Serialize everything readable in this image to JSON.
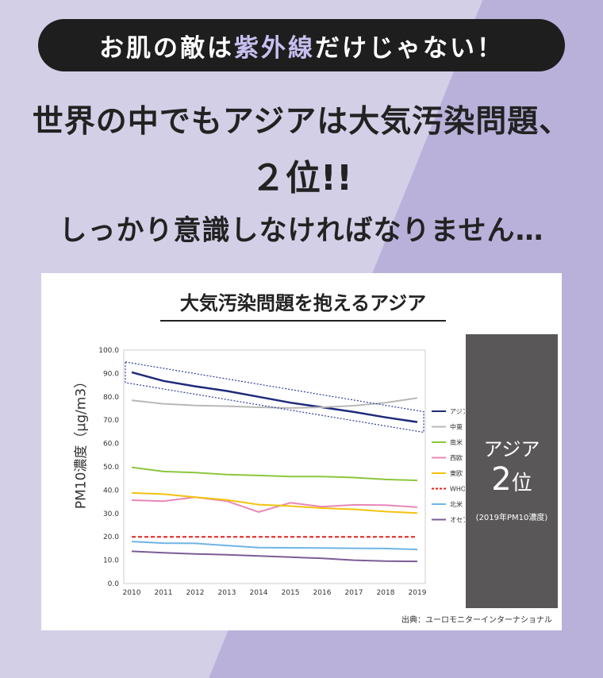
{
  "header": {
    "pill_prefix": "お肌の敵は",
    "pill_highlight": "紫外線",
    "pill_suffix": "だけじゃない！",
    "line1": "世界の中でもアジアは大気汚染問題、",
    "line2": "２位!!",
    "line3": "しっかり意識しなければなりません…"
  },
  "card": {
    "title": "大気汚染問題を抱えるアジア",
    "source": "出典：ユーロモニターインターナショナル"
  },
  "rank": {
    "name": "アジア",
    "num": "2",
    "unit": "位",
    "note": "(2019年PM10濃度)"
  },
  "chart_data": {
    "type": "line",
    "ylabel": "PM10濃度（μg/m3）",
    "ylim": [
      0,
      100
    ],
    "yticks": [
      "0.0",
      "10.0",
      "20.0",
      "30.0",
      "40.0",
      "50.0",
      "60.0",
      "70.0",
      "80.0",
      "90.0",
      "100.0"
    ],
    "x": [
      "2010",
      "2011",
      "2012",
      "2013",
      "2014",
      "2015",
      "2016",
      "2017",
      "2018",
      "2019"
    ],
    "series": [
      {
        "name": "アジア",
        "color": "#1f2a7a",
        "dash": false,
        "values": [
          90.5,
          86.8,
          84.5,
          82.5,
          80.0,
          77.5,
          75.5,
          73.5,
          71.2,
          69.2
        ]
      },
      {
        "name": "中東・アフリカ",
        "color": "#b8b8b8",
        "dash": false,
        "values": [
          78.5,
          77.0,
          76.3,
          76.0,
          75.5,
          75.2,
          75.5,
          76.2,
          77.5,
          79.5
        ]
      },
      {
        "name": "南米",
        "color": "#8cc63e",
        "dash": false,
        "values": [
          49.8,
          48.0,
          47.5,
          46.7,
          46.3,
          45.8,
          45.8,
          45.4,
          44.6,
          44.2
        ]
      },
      {
        "name": "西欧",
        "color": "#e887b8",
        "dash": false,
        "values": [
          35.7,
          35.3,
          37.0,
          35.3,
          30.6,
          34.6,
          32.9,
          33.7,
          33.6,
          32.7
        ]
      },
      {
        "name": "東欧",
        "color": "#f4c20d",
        "dash": false,
        "values": [
          38.8,
          38.3,
          37.0,
          35.8,
          33.8,
          33.2,
          32.3,
          31.8,
          30.8,
          30.2
        ]
      },
      {
        "name": "WHO推奨基準",
        "color": "#e0231c",
        "dash": true,
        "values": [
          20,
          20,
          20,
          20,
          20,
          20,
          20,
          20,
          20,
          20
        ]
      },
      {
        "name": "北米",
        "color": "#6fb4e6",
        "dash": false,
        "values": [
          18.0,
          17.3,
          17.2,
          16.3,
          15.4,
          15.3,
          15.2,
          15.1,
          15.0,
          14.6
        ]
      },
      {
        "name": "オセアニア",
        "color": "#7c5c96",
        "dash": false,
        "values": [
          13.8,
          13.2,
          12.7,
          12.3,
          11.8,
          11.3,
          10.8,
          10.0,
          9.6,
          9.5
        ]
      }
    ],
    "highlight_series": "アジア"
  }
}
